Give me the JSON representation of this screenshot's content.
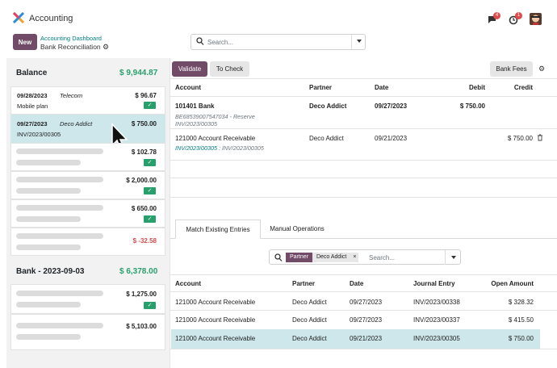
{
  "app": {
    "title": "Accounting"
  },
  "header": {
    "notif1": "4",
    "notif2": "1"
  },
  "control": {
    "new_label": "New",
    "breadcrumb_parent": "Accounting Dashboard",
    "breadcrumb_current": "Bank Reconciliation",
    "search_placeholder": "Search..."
  },
  "left": {
    "balance_label": "Balance",
    "balance_value": "$ 9,944.87",
    "group2_label": "Bank - 2023-09-03",
    "group2_value": "$ 6,378.00",
    "cards": [
      {
        "date": "09/28/2023",
        "partner": "Telecom",
        "desc": "Mobile plan",
        "amount": "$ 96.67"
      },
      {
        "date": "09/27/2023",
        "partner": "Deco Addict",
        "desc": "INV/2023/00305",
        "amount": "$ 750.00"
      },
      {
        "amount": "$ 102.78"
      },
      {
        "amount": "$ 2,000.00"
      },
      {
        "amount": "$ 650.00"
      },
      {
        "amount": "$ -32.58"
      },
      {
        "amount": "$ 1,275.00"
      },
      {
        "amount": "$ 5,103.00"
      }
    ]
  },
  "toolbar": {
    "validate": "Validate",
    "to_check": "To Check",
    "bank_fees": "Bank Fees"
  },
  "lines": {
    "headers": [
      "Account",
      "Partner",
      "Date",
      "Debit",
      "Credit"
    ],
    "rows": [
      {
        "account": "101401 Bank",
        "sub": "BE68539007547034 - Reserve",
        "sub2": "INV/2023/00305",
        "partner": "Deco Addict",
        "date": "09/27/2023",
        "debit": "$ 750.00",
        "credit": ""
      },
      {
        "account": "121000 Account Receivable",
        "sub_link": "INV/2023/00305",
        "sub_rest": ": INV/2023/00305",
        "partner": "Deco Addict",
        "date": "09/21/2023",
        "debit": "",
        "credit": "$ 750.00"
      }
    ]
  },
  "tabs": {
    "match": "Match Existing Entries",
    "manual": "Manual Operations"
  },
  "match_search": {
    "facet_key": "Partner",
    "facet_value": "Deco Addict",
    "placeholder": "Search..."
  },
  "entries": {
    "headers": [
      "Account",
      "Partner",
      "Date",
      "Journal Entry",
      "Open Amount"
    ],
    "rows": [
      {
        "account": "121000 Account Receivable",
        "partner": "Deco Addict",
        "date": "09/27/2023",
        "journal": "INV/2023/00338",
        "amount": "$ 328.32"
      },
      {
        "account": "121000 Account Receivable",
        "partner": "Deco Addict",
        "date": "09/27/2023",
        "journal": "INV/2023/00337",
        "amount": "$ 415.50"
      },
      {
        "account": "121000 Account Receivable",
        "partner": "Deco Addict",
        "date": "09/21/2023",
        "journal": "INV/2023/00305",
        "amount": "$ 750.00"
      }
    ]
  },
  "colors": {
    "accent": "#714b67",
    "positive": "#28a06b",
    "negative": "#d44c4c",
    "link": "#017e84",
    "selection": "#cde7ea"
  }
}
